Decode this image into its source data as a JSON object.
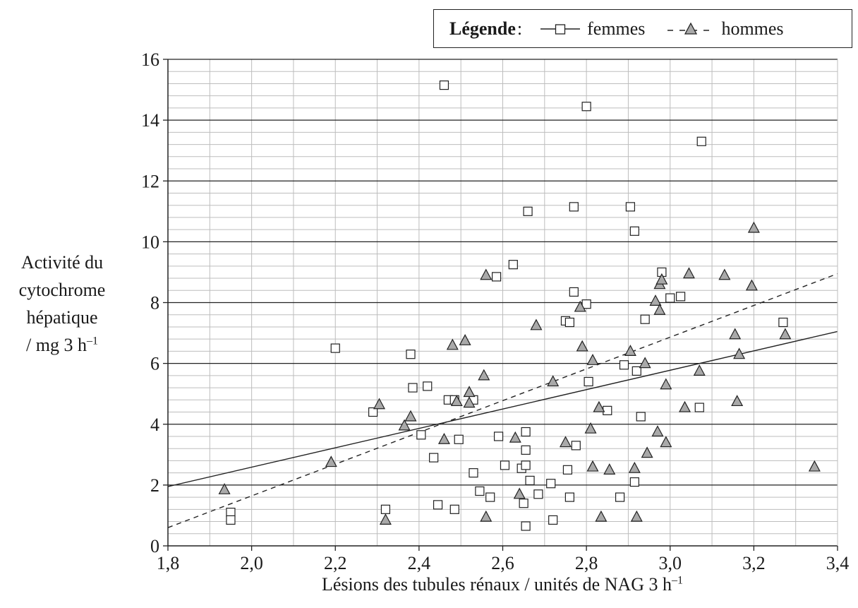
{
  "chart_data": {
    "type": "scatter",
    "title": "",
    "xlabel": "Lésions des tubules rénaux / unités de NAG 3 h",
    "xlabel_sup": "–1",
    "ylabel": [
      "Activité du",
      "cytochrome",
      "hépatique",
      "/ mg 3 h"
    ],
    "ylabel_sup": "–1",
    "xlim": [
      1.8,
      3.4
    ],
    "ylim": [
      0,
      16
    ],
    "x_ticks": [
      "1,8",
      "2,0",
      "2,2",
      "2,4",
      "2,6",
      "2,8",
      "3,0",
      "3,2",
      "3,4"
    ],
    "y_ticks": [
      "0",
      "2",
      "4",
      "6",
      "8",
      "10",
      "12",
      "14",
      "16"
    ],
    "grid": true,
    "legend": {
      "position": "top-right",
      "title": "Légende",
      "separator": ":",
      "entries": [
        "femmes",
        "hommes"
      ]
    },
    "series": [
      {
        "name": "femmes",
        "marker": "square",
        "color": "#ffffff",
        "trend_line": {
          "x": [
            1.8,
            3.4
          ],
          "y": [
            1.95,
            7.05
          ],
          "style": "solid"
        },
        "points": [
          [
            1.95,
            1.1
          ],
          [
            1.95,
            0.85
          ],
          [
            2.2,
            6.5
          ],
          [
            2.29,
            4.4
          ],
          [
            2.32,
            1.2
          ],
          [
            2.38,
            6.3
          ],
          [
            2.385,
            5.2
          ],
          [
            2.405,
            3.65
          ],
          [
            2.42,
            5.25
          ],
          [
            2.435,
            2.9
          ],
          [
            2.445,
            1.35
          ],
          [
            2.46,
            15.15
          ],
          [
            2.47,
            4.8
          ],
          [
            2.485,
            1.2
          ],
          [
            2.485,
            4.8
          ],
          [
            2.495,
            3.5
          ],
          [
            2.53,
            4.8
          ],
          [
            2.53,
            2.4
          ],
          [
            2.545,
            1.8
          ],
          [
            2.57,
            1.6
          ],
          [
            2.585,
            8.85
          ],
          [
            2.59,
            3.6
          ],
          [
            2.605,
            2.65
          ],
          [
            2.625,
            9.25
          ],
          [
            2.645,
            2.55
          ],
          [
            2.65,
            1.4
          ],
          [
            2.655,
            3.75
          ],
          [
            2.655,
            3.15
          ],
          [
            2.655,
            2.65
          ],
          [
            2.655,
            0.65
          ],
          [
            2.66,
            11.0
          ],
          [
            2.665,
            2.15
          ],
          [
            2.685,
            1.7
          ],
          [
            2.715,
            2.05
          ],
          [
            2.72,
            0.85
          ],
          [
            2.75,
            7.4
          ],
          [
            2.755,
            2.5
          ],
          [
            2.76,
            7.35
          ],
          [
            2.76,
            1.6
          ],
          [
            2.77,
            8.35
          ],
          [
            2.77,
            11.15
          ],
          [
            2.775,
            3.3
          ],
          [
            2.8,
            7.95
          ],
          [
            2.8,
            14.45
          ],
          [
            2.805,
            5.4
          ],
          [
            2.85,
            4.45
          ],
          [
            2.88,
            1.6
          ],
          [
            2.89,
            5.95
          ],
          [
            2.905,
            11.15
          ],
          [
            2.915,
            10.35
          ],
          [
            2.915,
            2.1
          ],
          [
            2.92,
            5.75
          ],
          [
            2.93,
            4.25
          ],
          [
            2.94,
            7.45
          ],
          [
            2.98,
            9.0
          ],
          [
            3.0,
            8.15
          ],
          [
            3.025,
            8.2
          ],
          [
            3.07,
            4.55
          ],
          [
            3.075,
            13.3
          ],
          [
            3.27,
            7.35
          ]
        ]
      },
      {
        "name": "hommes",
        "marker": "triangle",
        "color": "#a9a9a9",
        "trend_line": {
          "x": [
            1.8,
            3.4
          ],
          "y": [
            0.6,
            8.95
          ],
          "style": "dashed"
        },
        "points": [
          [
            1.935,
            1.85
          ],
          [
            2.19,
            2.75
          ],
          [
            2.305,
            4.65
          ],
          [
            2.32,
            0.85
          ],
          [
            2.365,
            3.95
          ],
          [
            2.38,
            4.25
          ],
          [
            2.46,
            3.5
          ],
          [
            2.48,
            6.6
          ],
          [
            2.49,
            4.75
          ],
          [
            2.51,
            6.75
          ],
          [
            2.52,
            4.7
          ],
          [
            2.52,
            5.05
          ],
          [
            2.555,
            5.6
          ],
          [
            2.56,
            0.95
          ],
          [
            2.56,
            8.9
          ],
          [
            2.63,
            3.55
          ],
          [
            2.64,
            1.7
          ],
          [
            2.68,
            7.25
          ],
          [
            2.72,
            5.4
          ],
          [
            2.75,
            3.4
          ],
          [
            2.785,
            7.85
          ],
          [
            2.79,
            6.55
          ],
          [
            2.81,
            3.85
          ],
          [
            2.815,
            2.6
          ],
          [
            2.815,
            6.1
          ],
          [
            2.83,
            4.55
          ],
          [
            2.835,
            0.95
          ],
          [
            2.855,
            2.5
          ],
          [
            2.905,
            6.4
          ],
          [
            2.915,
            2.55
          ],
          [
            2.92,
            0.95
          ],
          [
            2.94,
            6.0
          ],
          [
            2.945,
            3.05
          ],
          [
            2.965,
            8.05
          ],
          [
            2.97,
            3.75
          ],
          [
            2.975,
            7.75
          ],
          [
            2.975,
            8.6
          ],
          [
            2.98,
            8.75
          ],
          [
            2.99,
            5.3
          ],
          [
            2.99,
            3.4
          ],
          [
            3.035,
            4.55
          ],
          [
            3.045,
            8.95
          ],
          [
            3.07,
            5.75
          ],
          [
            3.13,
            8.9
          ],
          [
            3.155,
            6.95
          ],
          [
            3.16,
            4.75
          ],
          [
            3.165,
            6.3
          ],
          [
            3.195,
            8.55
          ],
          [
            3.2,
            10.45
          ],
          [
            3.275,
            6.95
          ],
          [
            3.345,
            2.6
          ]
        ]
      }
    ]
  }
}
